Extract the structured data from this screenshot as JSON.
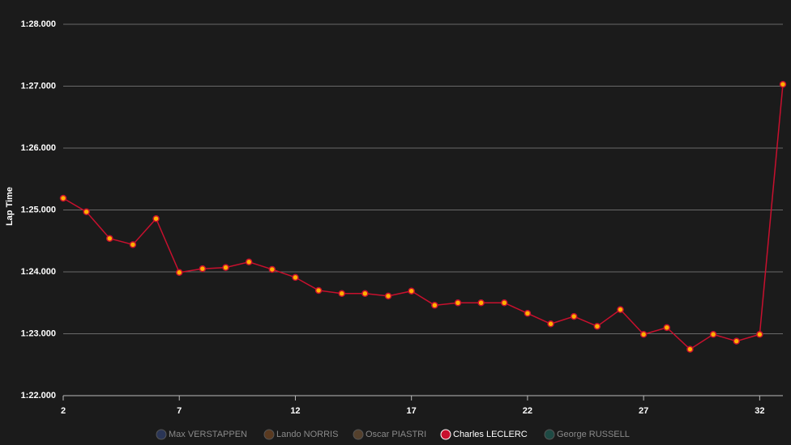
{
  "chart_data": {
    "type": "line",
    "y_label": "Lap Time",
    "x": [
      2,
      3,
      4,
      5,
      6,
      7,
      8,
      9,
      10,
      11,
      12,
      13,
      14,
      15,
      16,
      17,
      18,
      19,
      20,
      21,
      22,
      23,
      24,
      25,
      26,
      27,
      28,
      29,
      30,
      31,
      32,
      33
    ],
    "xlim": [
      2,
      33
    ],
    "xticks": [
      2,
      7,
      12,
      17,
      22,
      27,
      32
    ],
    "ylim": [
      82,
      88
    ],
    "yticks": [
      {
        "value": 82,
        "label": "1:22.000"
      },
      {
        "value": 83,
        "label": "1:23.000"
      },
      {
        "value": 84,
        "label": "1:24.000"
      },
      {
        "value": 85,
        "label": "1:25.000"
      },
      {
        "value": 86,
        "label": "1:26.000"
      },
      {
        "value": 87,
        "label": "1:27.000"
      },
      {
        "value": 88,
        "label": "1:28.000"
      }
    ],
    "grid": true,
    "legend": "bottom",
    "series": [
      {
        "name": "Max VERSTAPPEN",
        "color": "#2a3556",
        "visible": false,
        "values": [
          null,
          null,
          null,
          null,
          null,
          null,
          null,
          null,
          null,
          null,
          null,
          null,
          null,
          null,
          null,
          null,
          null,
          null,
          null,
          null,
          null,
          null,
          null,
          null,
          null,
          null,
          null,
          null,
          null,
          null,
          null,
          null
        ]
      },
      {
        "name": "Lando NORRIS",
        "color": "#5a3a20",
        "visible": false,
        "values": [
          null,
          null,
          null,
          null,
          null,
          null,
          null,
          null,
          null,
          null,
          null,
          null,
          null,
          null,
          null,
          null,
          null,
          null,
          null,
          null,
          null,
          null,
          null,
          null,
          null,
          null,
          null,
          null,
          null,
          null,
          null,
          null
        ]
      },
      {
        "name": "Oscar PIASTRI",
        "color": "#54402c",
        "visible": false,
        "values": [
          null,
          null,
          null,
          null,
          null,
          null,
          null,
          null,
          null,
          null,
          null,
          null,
          null,
          null,
          null,
          null,
          null,
          null,
          null,
          null,
          null,
          null,
          null,
          null,
          null,
          null,
          null,
          null,
          null,
          null,
          null,
          null
        ]
      },
      {
        "name": "Charles LECLERC",
        "color": "#c8102e",
        "marker_color": "#ffb000",
        "visible": true,
        "values": [
          85.19,
          84.97,
          84.54,
          84.44,
          84.86,
          83.99,
          84.05,
          84.07,
          84.16,
          84.04,
          83.91,
          83.7,
          83.65,
          83.65,
          83.61,
          83.69,
          83.46,
          83.5,
          83.5,
          83.5,
          83.33,
          83.16,
          83.28,
          83.12,
          83.39,
          82.99,
          83.1,
          82.75,
          82.99,
          82.88,
          82.99,
          87.03
        ]
      },
      {
        "name": "George RUSSELL",
        "color": "#1e4a44",
        "visible": false,
        "values": [
          null,
          null,
          null,
          null,
          null,
          null,
          null,
          null,
          null,
          null,
          null,
          null,
          null,
          null,
          null,
          null,
          null,
          null,
          null,
          null,
          null,
          null,
          null,
          null,
          null,
          null,
          null,
          null,
          null,
          null,
          null,
          null
        ]
      }
    ]
  }
}
